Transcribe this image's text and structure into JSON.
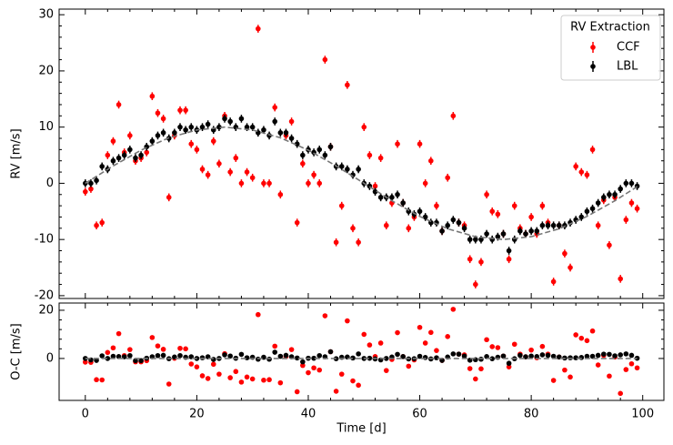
{
  "chart_data": [
    {
      "type": "errorbar",
      "ylabel": "RV [m/s]",
      "legend_title": "RV Extraction",
      "legend": "upper right",
      "xlim": [
        -4.7,
        103.8
      ],
      "xticks": [
        0,
        20,
        40,
        60,
        80,
        100
      ],
      "ylim": [
        -20.5,
        31
      ],
      "yticks": [
        -20,
        -10,
        0,
        10,
        20,
        30
      ],
      "x": [
        0,
        1,
        2,
        3,
        4,
        5,
        6,
        7,
        8,
        9,
        10,
        11,
        12,
        13,
        14,
        15,
        16,
        17,
        18,
        19,
        20,
        21,
        22,
        23,
        24,
        25,
        26,
        27,
        28,
        29,
        30,
        31,
        32,
        33,
        34,
        35,
        36,
        37,
        38,
        39,
        40,
        41,
        42,
        43,
        44,
        45,
        46,
        47,
        48,
        49,
        50,
        51,
        52,
        53,
        54,
        55,
        56,
        57,
        58,
        59,
        60,
        61,
        62,
        63,
        64,
        65,
        66,
        67,
        68,
        69,
        70,
        71,
        72,
        73,
        74,
        75,
        76,
        77,
        78,
        79,
        80,
        81,
        82,
        83,
        84,
        85,
        86,
        87,
        88,
        89,
        90,
        91,
        92,
        93,
        94,
        95,
        96,
        97,
        98,
        99
      ],
      "series": [
        {
          "name": "CCF",
          "color": "#ff0000",
          "error": 0.7,
          "values": [
            -1.5,
            -1,
            -7.5,
            -7,
            5,
            7.5,
            14,
            5.5,
            8.5,
            4,
            4.5,
            5.5,
            15.5,
            12.5,
            11.5,
            -2.5,
            8.5,
            13,
            13,
            7,
            6,
            2.5,
            1.5,
            7.5,
            3.5,
            12,
            2,
            4.5,
            0,
            2,
            1,
            27.5,
            0,
            0,
            13.5,
            -2,
            8.5,
            11,
            -7,
            3.5,
            0,
            1.5,
            0,
            22,
            6.5,
            -10.5,
            -4,
            17.5,
            -8,
            -10.5,
            10,
            5,
            -0.5,
            4.5,
            -7.5,
            -3.5,
            7,
            -3.5,
            -8,
            -6,
            7,
            0,
            4,
            -4,
            -8.5,
            1,
            12,
            -7,
            -7.5,
            -13.5,
            -18,
            -14,
            -2,
            -5,
            -5.5,
            -9,
            -13.5,
            -4,
            -8,
            -9,
            -6,
            -9,
            -4,
            -7,
            -17.5,
            -7.5,
            -12.5,
            -15,
            3,
            2,
            1.5,
            6,
            -7.5,
            -3,
            -11,
            -2.5,
            -17,
            -6.5,
            -3.5,
            -4.5
          ]
        },
        {
          "name": "LBL",
          "color": "#000000",
          "error": 0.7,
          "values": [
            0,
            0,
            0.5,
            3,
            2.5,
            4,
            4.5,
            5,
            6,
            4.5,
            5,
            6.5,
            7.5,
            8.5,
            9,
            8,
            9,
            10,
            9.5,
            10,
            9.5,
            10,
            10.5,
            9.5,
            10,
            11.5,
            11,
            10,
            11.5,
            10,
            10,
            9,
            9.5,
            8.5,
            11,
            9,
            9,
            8,
            7,
            5,
            6,
            5.5,
            6,
            5,
            6.5,
            3,
            3,
            2.5,
            1.5,
            2.5,
            0,
            -0.5,
            -1.5,
            -2.5,
            -2.5,
            -2.5,
            -2,
            -3.5,
            -5,
            -5.5,
            -5,
            -6,
            -7,
            -7,
            -8.5,
            -7.5,
            -6.5,
            -7,
            -8,
            -10,
            -10,
            -10,
            -9,
            -10,
            -9.5,
            -9,
            -12,
            -10,
            -8.5,
            -9,
            -8.5,
            -8.5,
            -7.5,
            -7.5,
            -7.5,
            -7.5,
            -7.5,
            -7,
            -6.5,
            -6,
            -5,
            -4.5,
            -3.5,
            -2.5,
            -2,
            -2,
            -1,
            0,
            0,
            -0.5
          ]
        }
      ],
      "model": {
        "color": "#777777",
        "x": [
          0,
          5,
          10,
          15,
          20,
          25,
          30,
          35,
          40,
          45,
          50,
          55,
          60,
          65,
          70,
          75,
          80,
          85,
          90,
          95,
          99
        ],
        "values": [
          0,
          3.1,
          5.9,
          8.1,
          9.5,
          10,
          9.5,
          8.1,
          5.9,
          3.1,
          0,
          -3.1,
          -5.9,
          -8.1,
          -9.5,
          -10,
          -9.5,
          -8.1,
          -5.9,
          -3.1,
          -0.6
        ]
      }
    },
    {
      "type": "errorbar",
      "ylabel": "O-C [m/s]",
      "xlabel": "Time [d]",
      "xlim": [
        -4.7,
        103.8
      ],
      "xticks": [
        0,
        20,
        40,
        60,
        80,
        100
      ],
      "ylim": [
        -17.4,
        23
      ],
      "yticks": [
        0,
        20
      ],
      "hline": 0,
      "x": [
        0,
        1,
        2,
        3,
        4,
        5,
        6,
        7,
        8,
        9,
        10,
        11,
        12,
        13,
        14,
        15,
        16,
        17,
        18,
        19,
        20,
        21,
        22,
        23,
        24,
        25,
        26,
        27,
        28,
        29,
        30,
        31,
        32,
        33,
        34,
        35,
        36,
        37,
        38,
        39,
        40,
        41,
        42,
        43,
        44,
        45,
        46,
        47,
        48,
        49,
        50,
        51,
        52,
        53,
        54,
        55,
        56,
        57,
        58,
        59,
        60,
        61,
        62,
        63,
        64,
        65,
        66,
        67,
        68,
        69,
        70,
        71,
        72,
        73,
        74,
        75,
        76,
        77,
        78,
        79,
        80,
        81,
        82,
        83,
        84,
        85,
        86,
        87,
        88,
        89,
        90,
        91,
        92,
        93,
        94,
        95,
        96,
        97,
        98,
        99
      ],
      "series": [
        {
          "color": "#ff0000",
          "error": 0.7,
          "values": [
            -1.5,
            -1.6,
            -8.8,
            -8.9,
            2.5,
            4.4,
            10.3,
            1.2,
            3.7,
            -1.4,
            -1.4,
            -0.9,
            8.7,
            5.2,
            3.8,
            -10.6,
            0.1,
            4.2,
            4,
            -2.3,
            -3.5,
            -7.2,
            -8.3,
            -2.4,
            -6.5,
            2,
            -8,
            -5.4,
            -9.8,
            -7.7,
            -8.5,
            18.2,
            -9,
            -8.8,
            5.1,
            -10.1,
            0.8,
            3.7,
            -13.8,
            -2.9,
            -5.9,
            -3.9,
            -4.8,
            17.7,
            2.8,
            -13.6,
            -6.5,
            15.6,
            -9.3,
            -11.1,
            10,
            5.6,
            0.8,
            6.4,
            -5,
            -0.4,
            10.7,
            0.8,
            -3.2,
            -0.6,
            12.9,
            6.4,
            10.8,
            3.3,
            -0.8,
            9.1,
            20.4,
            1.8,
            1.5,
            -4.2,
            -8.5,
            -4.3,
            7.8,
            4.9,
            4.5,
            1,
            -3.5,
            5.9,
            1.8,
            0.7,
            3.5,
            0.3,
            5,
            1.8,
            -9.1,
            0.6,
            -4.8,
            -7.7,
            9.8,
            8.4,
            7.4,
            11.4,
            -2.7,
            1.3,
            -7.3,
            0.6,
            -14.5,
            -4.6,
            -2.2,
            -3.9
          ]
        },
        {
          "color": "#000000",
          "error": 0.7,
          "values": [
            0,
            -0.6,
            -0.8,
            1.1,
            0,
            0.9,
            0.8,
            0.7,
            1.2,
            -0.9,
            -0.9,
            0.1,
            0.7,
            1.2,
            1.3,
            -0.1,
            0.6,
            1.2,
            0.5,
            0.7,
            0,
            0.3,
            0.7,
            -0.4,
            0,
            1.5,
            1,
            0.1,
            1.7,
            0.3,
            0.5,
            -0.3,
            0.5,
            -0.3,
            2.6,
            0.9,
            1.3,
            0.7,
            0.2,
            -1.4,
            0.1,
            0.1,
            1.2,
            0.7,
            2.8,
            -0.1,
            0.5,
            0.6,
            0.2,
            1.9,
            0,
            0.1,
            -0.2,
            -0.6,
            0,
            0.6,
            1.7,
            0.8,
            -0.2,
            -0.1,
            0.9,
            0.4,
            -0.2,
            0.3,
            -0.8,
            0.6,
            1.9,
            1.8,
            1,
            -0.7,
            -0.5,
            -0.3,
            0.8,
            -0.1,
            0.5,
            1,
            -2,
            -0.1,
            1.3,
            0.7,
            1,
            0.8,
            1.5,
            1.3,
            0.9,
            0.6,
            0.2,
            0.3,
            0.3,
            0.4,
            0.9,
            0.9,
            1.3,
            1.8,
            1.7,
            1.1,
            1.5,
            1.9,
            1.3,
            0.1
          ]
        }
      ],
      "hline_color": "#777777"
    }
  ]
}
